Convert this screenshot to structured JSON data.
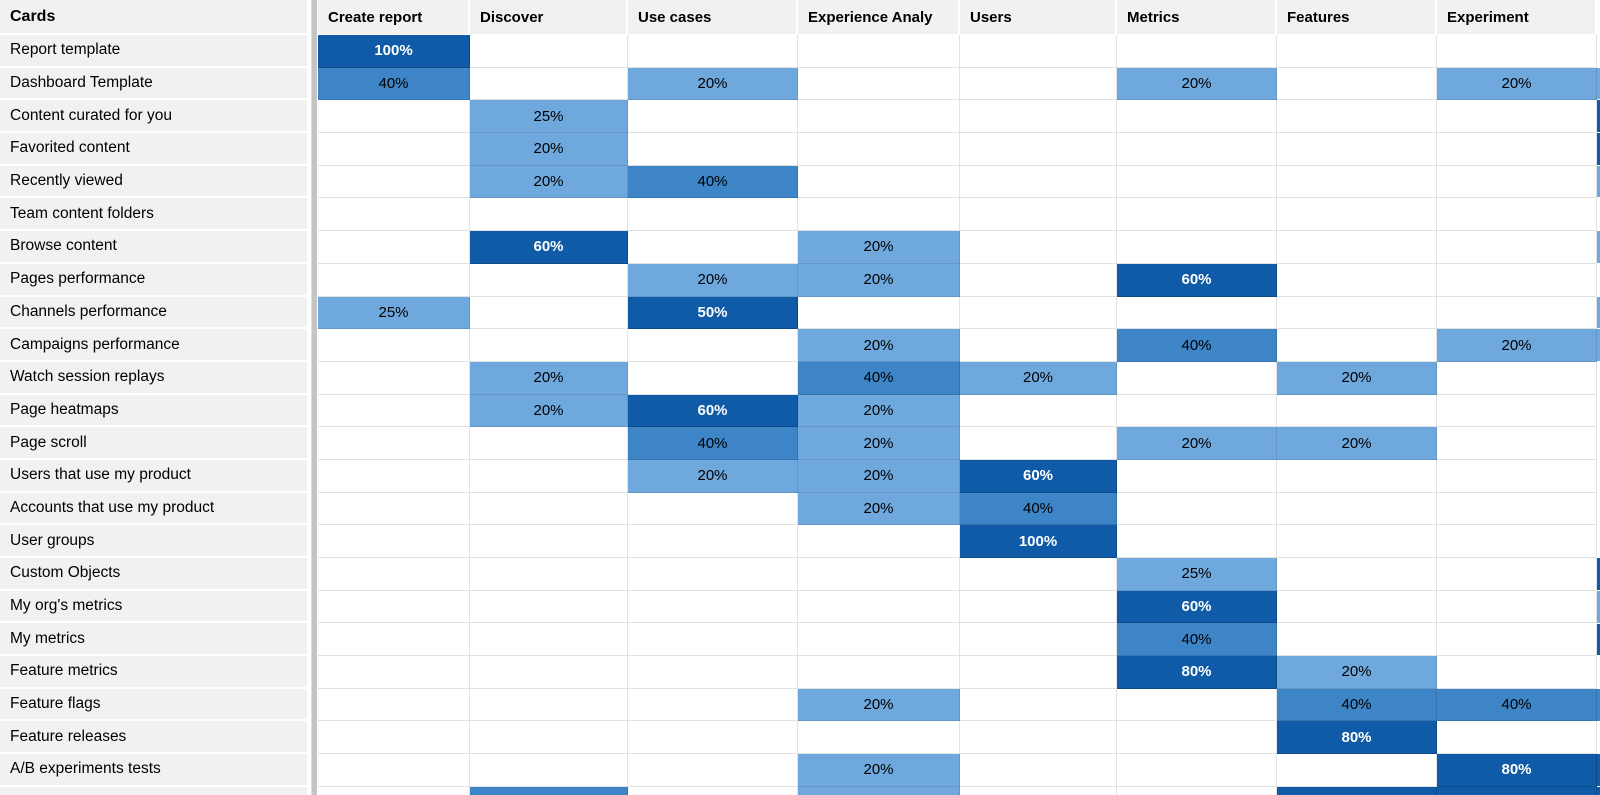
{
  "colors": {
    "light_blue": "#6fa8dc",
    "medium_blue": "#3d85c6",
    "dark_blue": "#0f5ba7",
    "label_bg": "#f1f1f1",
    "gridline": "#e2e2e2",
    "scrollbar": "#c4c4c4"
  },
  "grid": {
    "corner_header": "Cards",
    "column_headers": [
      "Create report",
      "Discover",
      "Use cases",
      "Experience Analy",
      "Users",
      "Metrics",
      "Features",
      "Experiment"
    ],
    "rows": [
      {
        "label": "Report template",
        "cells": [
          {
            "v": "100%",
            "c": "dark"
          },
          null,
          null,
          null,
          null,
          null,
          null,
          null
        ],
        "edge": null
      },
      {
        "label": "Dashboard Template",
        "cells": [
          {
            "v": "40%",
            "c": "medium"
          },
          null,
          {
            "v": "20%",
            "c": "light"
          },
          null,
          null,
          {
            "v": "20%",
            "c": "light"
          },
          null,
          {
            "v": "20%",
            "c": "light"
          }
        ],
        "edge": "light"
      },
      {
        "label": "Content curated for you",
        "cells": [
          null,
          {
            "v": "25%",
            "c": "light"
          },
          null,
          null,
          null,
          null,
          null,
          null
        ],
        "edge": "dark"
      },
      {
        "label": "Favorited content",
        "cells": [
          null,
          {
            "v": "20%",
            "c": "light"
          },
          null,
          null,
          null,
          null,
          null,
          null
        ],
        "edge": "dark"
      },
      {
        "label": "Recently viewed",
        "cells": [
          null,
          {
            "v": "20%",
            "c": "light"
          },
          {
            "v": "40%",
            "c": "medium"
          },
          null,
          null,
          null,
          null,
          null
        ],
        "edge": "light"
      },
      {
        "label": "Team content folders",
        "cells": [
          null,
          null,
          null,
          null,
          null,
          null,
          null,
          null
        ],
        "edge": null
      },
      {
        "label": "Browse content",
        "cells": [
          null,
          {
            "v": "60%",
            "c": "dark"
          },
          null,
          {
            "v": "20%",
            "c": "light"
          },
          null,
          null,
          null,
          null
        ],
        "edge": "light"
      },
      {
        "label": "Pages performance",
        "cells": [
          null,
          null,
          {
            "v": "20%",
            "c": "light"
          },
          {
            "v": "20%",
            "c": "light"
          },
          null,
          {
            "v": "60%",
            "c": "dark"
          },
          null,
          null
        ],
        "edge": null
      },
      {
        "label": "Channels performance",
        "cells": [
          {
            "v": "25%",
            "c": "light"
          },
          null,
          {
            "v": "50%",
            "c": "dark"
          },
          null,
          null,
          null,
          null,
          null
        ],
        "edge": "light"
      },
      {
        "label": "Campaigns performance",
        "cells": [
          null,
          null,
          null,
          {
            "v": "20%",
            "c": "light"
          },
          null,
          {
            "v": "40%",
            "c": "medium"
          },
          null,
          {
            "v": "20%",
            "c": "light"
          }
        ],
        "edge": "light"
      },
      {
        "label": "Watch session replays",
        "cells": [
          null,
          {
            "v": "20%",
            "c": "light"
          },
          null,
          {
            "v": "40%",
            "c": "medium"
          },
          {
            "v": "20%",
            "c": "light"
          },
          null,
          {
            "v": "20%",
            "c": "light"
          },
          null
        ],
        "edge": null
      },
      {
        "label": "Page heatmaps",
        "cells": [
          null,
          {
            "v": "20%",
            "c": "light"
          },
          {
            "v": "60%",
            "c": "dark"
          },
          {
            "v": "20%",
            "c": "light"
          },
          null,
          null,
          null,
          null
        ],
        "edge": null
      },
      {
        "label": "Page scroll",
        "cells": [
          null,
          null,
          {
            "v": "40%",
            "c": "medium"
          },
          {
            "v": "20%",
            "c": "light"
          },
          null,
          {
            "v": "20%",
            "c": "light"
          },
          {
            "v": "20%",
            "c": "light"
          },
          null
        ],
        "edge": null
      },
      {
        "label": "Users that use my product",
        "cells": [
          null,
          null,
          {
            "v": "20%",
            "c": "light"
          },
          {
            "v": "20%",
            "c": "light"
          },
          {
            "v": "60%",
            "c": "dark"
          },
          null,
          null,
          null
        ],
        "edge": null
      },
      {
        "label": "Accounts that use my product",
        "cells": [
          null,
          null,
          null,
          {
            "v": "20%",
            "c": "light"
          },
          {
            "v": "40%",
            "c": "medium"
          },
          null,
          null,
          null
        ],
        "edge": null
      },
      {
        "label": "User groups",
        "cells": [
          null,
          null,
          null,
          null,
          {
            "v": "100%",
            "c": "dark"
          },
          null,
          null,
          null
        ],
        "edge": null
      },
      {
        "label": "Custom Objects",
        "cells": [
          null,
          null,
          null,
          null,
          null,
          {
            "v": "25%",
            "c": "light"
          },
          null,
          null
        ],
        "edge": "dark"
      },
      {
        "label": "My org's metrics",
        "cells": [
          null,
          null,
          null,
          null,
          null,
          {
            "v": "60%",
            "c": "dark"
          },
          null,
          null
        ],
        "edge": "light"
      },
      {
        "label": "My metrics",
        "cells": [
          null,
          null,
          null,
          null,
          null,
          {
            "v": "40%",
            "c": "medium"
          },
          null,
          null
        ],
        "edge": "dark"
      },
      {
        "label": "Feature metrics",
        "cells": [
          null,
          null,
          null,
          null,
          null,
          {
            "v": "80%",
            "c": "dark"
          },
          {
            "v": "20%",
            "c": "light"
          },
          null
        ],
        "edge": null
      },
      {
        "label": "Feature flags",
        "cells": [
          null,
          null,
          null,
          {
            "v": "20%",
            "c": "light"
          },
          null,
          null,
          {
            "v": "40%",
            "c": "medium"
          },
          {
            "v": "40%",
            "c": "medium"
          }
        ],
        "edge": "medium"
      },
      {
        "label": "Feature releases",
        "cells": [
          null,
          null,
          null,
          null,
          null,
          null,
          {
            "v": "80%",
            "c": "dark"
          },
          null
        ],
        "edge": null
      },
      {
        "label": "A/B experiments tests",
        "cells": [
          null,
          null,
          null,
          {
            "v": "20%",
            "c": "light"
          },
          null,
          null,
          null,
          {
            "v": "80%",
            "c": "dark"
          }
        ],
        "edge": "dark"
      }
    ],
    "clipped_bottom_row": {
      "cells": [
        null,
        {
          "c": "medium"
        },
        null,
        {
          "c": "light"
        },
        null,
        null,
        {
          "c": "dark"
        },
        {
          "c": "dark"
        }
      ],
      "edge": "dark"
    }
  }
}
